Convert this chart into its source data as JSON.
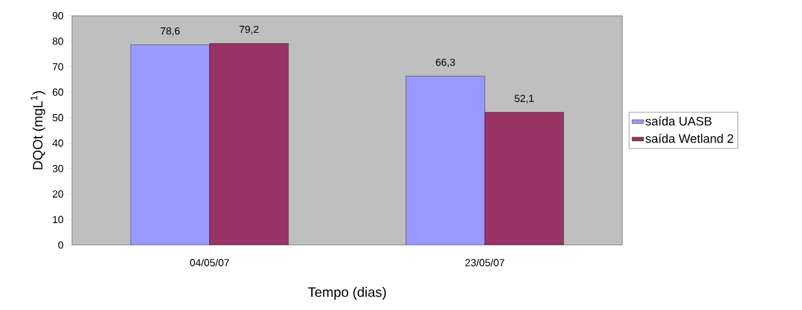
{
  "chart_data": {
    "type": "bar",
    "xlabel": "Tempo (dias)",
    "ylabel": "DQOt (mgL$^{1}$)",
    "categories": [
      "04/05/07",
      "23/05/07"
    ],
    "series": [
      {
        "name": "saída UASB",
        "color": "#9999ff",
        "values": [
          78.6,
          66.3
        ],
        "value_labels": [
          "78,6",
          "66,3"
        ]
      },
      {
        "name": "saída Wetland 2",
        "color": "#993366",
        "values": [
          79.2,
          52.1
        ],
        "value_labels": [
          "79,2",
          "52,1"
        ]
      }
    ],
    "ylim": [
      0,
      90
    ],
    "yticks": [
      0,
      10,
      20,
      30,
      40,
      50,
      60,
      70,
      80,
      90
    ],
    "grid": false,
    "legend": "right"
  }
}
